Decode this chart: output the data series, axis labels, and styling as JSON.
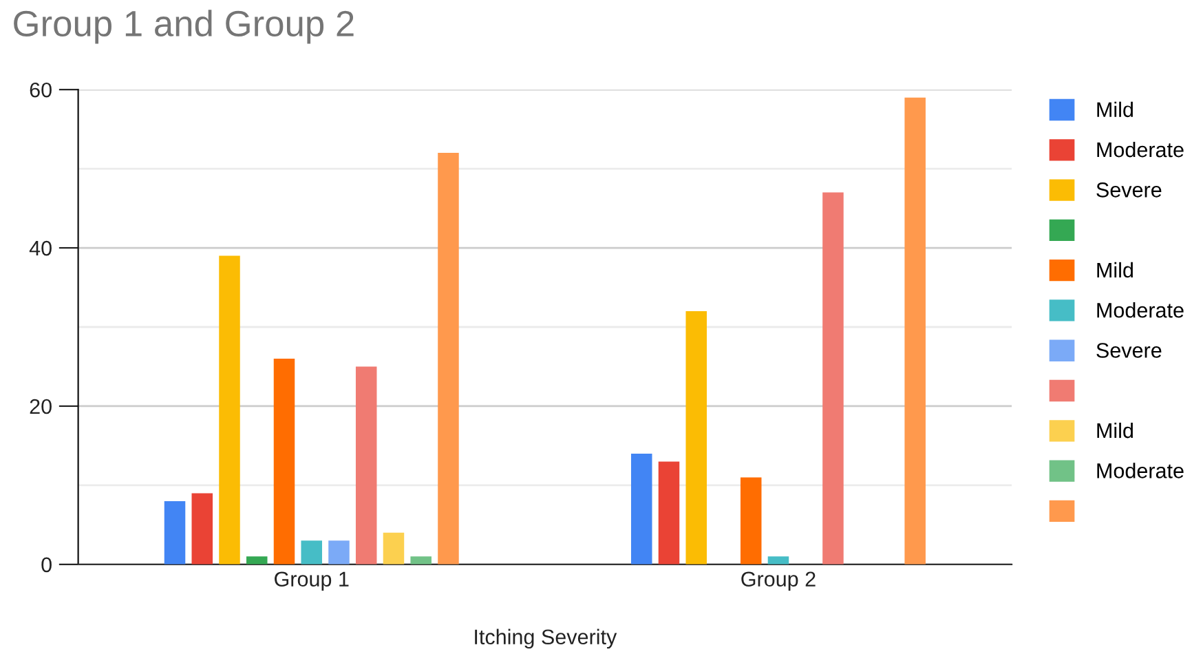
{
  "chart_data": {
    "type": "bar",
    "title": "Group 1 and Group 2",
    "xlabel": "Itching Severity",
    "categories": [
      "Group 1",
      "Group 2"
    ],
    "series": [
      {
        "name": "Mild",
        "color": "#4285f4",
        "values": [
          8,
          14
        ]
      },
      {
        "name": "Moderate",
        "color": "#ea4335",
        "values": [
          9,
          13
        ]
      },
      {
        "name": "Severe",
        "color": "#fbbc04",
        "values": [
          39,
          32
        ]
      },
      {
        "color": "#34a853",
        "values": [
          1,
          null
        ]
      },
      {
        "name": "Mild",
        "color": "#ff6d01",
        "values": [
          26,
          11
        ]
      },
      {
        "name": "Moderate",
        "color": "#46bdc6",
        "values": [
          3,
          1
        ]
      },
      {
        "name": "Severe",
        "color": "#7baaf7",
        "values": [
          3,
          null
        ]
      },
      {
        "color": "#f07b72",
        "values": [
          25,
          47
        ]
      },
      {
        "name": "Mild",
        "color": "#fcd04f",
        "values": [
          4,
          null
        ]
      },
      {
        "name": "Moderate",
        "color": "#71c287",
        "values": [
          1,
          null
        ]
      },
      {
        "color": "#ff994d",
        "values": [
          52,
          59
        ]
      }
    ],
    "ylim": [
      0,
      60
    ],
    "yticks": [
      0,
      {
        "value": 10,
        "label": null
      },
      20,
      {
        "value": 30,
        "label": null
      },
      40,
      {
        "value": 50,
        "label": null
      },
      60
    ],
    "grid": "y",
    "legend": "right"
  }
}
